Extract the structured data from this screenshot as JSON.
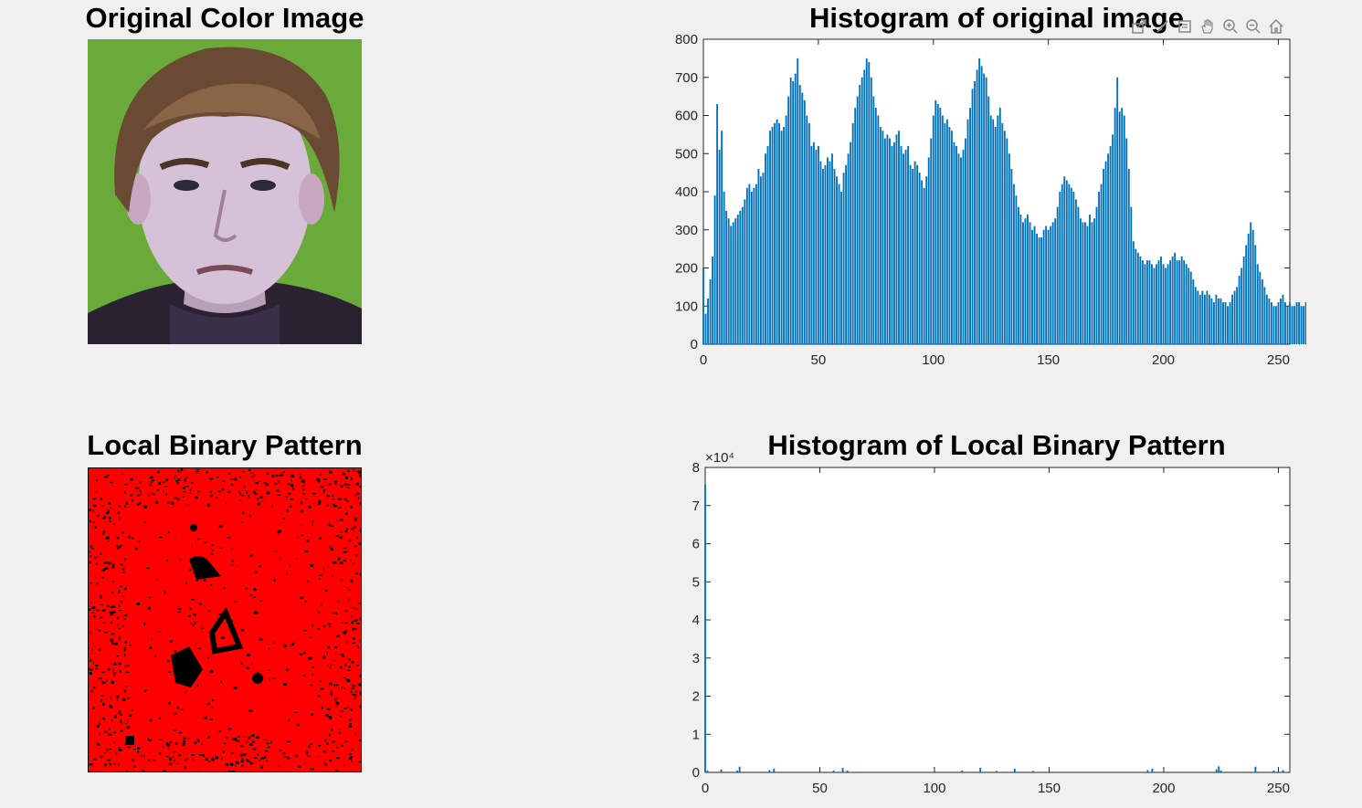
{
  "titles": {
    "original": "Original Color Image",
    "hist_original": "Histogram of original image",
    "lbp": "Local Binary Pattern",
    "hist_lbp": "Histogram of Local Binary Pattern"
  },
  "toolbar": {
    "icons": [
      "export-icon",
      "brush-icon",
      "datatip-icon",
      "pan-icon",
      "zoom-in-icon",
      "zoom-out-icon",
      "home-icon"
    ]
  },
  "colors": {
    "bar": "#0072bd",
    "lbp_background": "#ff0000",
    "face_background": "#6aaa3a"
  },
  "chart_data": [
    {
      "type": "bar",
      "title": "Histogram of original image",
      "xlim": [
        0,
        255
      ],
      "ylim": [
        0,
        800
      ],
      "xticks": [
        "0",
        "50",
        "100",
        "150",
        "200",
        "250"
      ],
      "yticks": [
        "0",
        "100",
        "200",
        "300",
        "400",
        "500",
        "600",
        "700",
        "800"
      ],
      "x": "0..255",
      "values": [
        200,
        80,
        120,
        170,
        230,
        390,
        630,
        510,
        560,
        400,
        350,
        330,
        310,
        320,
        330,
        340,
        350,
        360,
        380,
        410,
        420,
        400,
        410,
        420,
        460,
        440,
        450,
        500,
        520,
        560,
        570,
        580,
        590,
        580,
        560,
        570,
        600,
        650,
        700,
        690,
        710,
        750,
        680,
        660,
        640,
        600,
        580,
        520,
        530,
        510,
        520,
        480,
        460,
        470,
        490,
        480,
        500,
        460,
        440,
        420,
        400,
        450,
        470,
        500,
        530,
        580,
        620,
        650,
        680,
        700,
        720,
        750,
        740,
        700,
        650,
        620,
        600,
        570,
        560,
        540,
        550,
        540,
        520,
        530,
        550,
        560,
        520,
        500,
        510,
        520,
        470,
        460,
        480,
        470,
        450,
        430,
        410,
        440,
        490,
        540,
        600,
        640,
        630,
        620,
        600,
        580,
        590,
        570,
        560,
        530,
        520,
        500,
        490,
        510,
        540,
        590,
        620,
        670,
        690,
        720,
        750,
        730,
        710,
        700,
        650,
        600,
        590,
        570,
        600,
        620,
        580,
        560,
        540,
        500,
        460,
        420,
        390,
        360,
        340,
        320,
        330,
        340,
        320,
        300,
        310,
        290,
        280,
        280,
        300,
        310,
        300,
        310,
        320,
        330,
        360,
        400,
        420,
        440,
        430,
        420,
        410,
        400,
        380,
        360,
        330,
        320,
        320,
        310,
        340,
        320,
        330,
        360,
        400,
        420,
        460,
        480,
        500,
        520,
        550,
        620,
        700,
        610,
        620,
        600,
        540,
        460,
        360,
        270,
        250,
        240,
        230,
        220,
        210,
        220,
        220,
        210,
        200,
        210,
        220,
        230,
        210,
        200,
        210,
        220,
        230,
        240,
        220,
        220,
        230,
        220,
        210,
        200,
        190,
        170,
        150,
        140,
        130,
        140,
        130,
        140,
        130,
        120,
        110,
        130,
        120,
        120,
        110,
        110,
        100,
        110,
        130,
        140,
        150,
        180,
        200,
        230,
        260,
        290,
        320,
        300,
        260,
        210,
        190,
        170,
        150,
        130,
        120,
        110,
        100,
        100,
        110,
        120,
        130,
        110,
        100,
        110,
        100,
        100,
        110,
        110,
        100,
        100,
        110
      ],
      "xlabel": "",
      "ylabel": ""
    },
    {
      "type": "bar",
      "title": "Histogram of Local Binary Pattern",
      "xlim": [
        0,
        255
      ],
      "ylim": [
        0,
        8
      ],
      "y_exponent": "×10⁴",
      "xticks": [
        "0",
        "50",
        "100",
        "150",
        "200",
        "250"
      ],
      "yticks": [
        "0",
        "1",
        "2",
        "3",
        "4",
        "5",
        "6",
        "7",
        "8"
      ],
      "nonzero_bins": [
        {
          "x": 0,
          "y": 7.55
        },
        {
          "x": 1,
          "y": 0.05
        },
        {
          "x": 7,
          "y": 0.08
        },
        {
          "x": 14,
          "y": 0.05
        },
        {
          "x": 15,
          "y": 0.15
        },
        {
          "x": 28,
          "y": 0.06
        },
        {
          "x": 30,
          "y": 0.1
        },
        {
          "x": 56,
          "y": 0.05
        },
        {
          "x": 60,
          "y": 0.12
        },
        {
          "x": 62,
          "y": 0.05
        },
        {
          "x": 112,
          "y": 0.05
        },
        {
          "x": 120,
          "y": 0.12
        },
        {
          "x": 127,
          "y": 0.04
        },
        {
          "x": 135,
          "y": 0.1
        },
        {
          "x": 143,
          "y": 0.04
        },
        {
          "x": 193,
          "y": 0.06
        },
        {
          "x": 195,
          "y": 0.1
        },
        {
          "x": 223,
          "y": 0.08
        },
        {
          "x": 224,
          "y": 0.16
        },
        {
          "x": 225,
          "y": 0.05
        },
        {
          "x": 240,
          "y": 0.15
        },
        {
          "x": 248,
          "y": 0.05
        },
        {
          "x": 252,
          "y": 0.06
        }
      ],
      "xlabel": "",
      "ylabel": ""
    }
  ]
}
